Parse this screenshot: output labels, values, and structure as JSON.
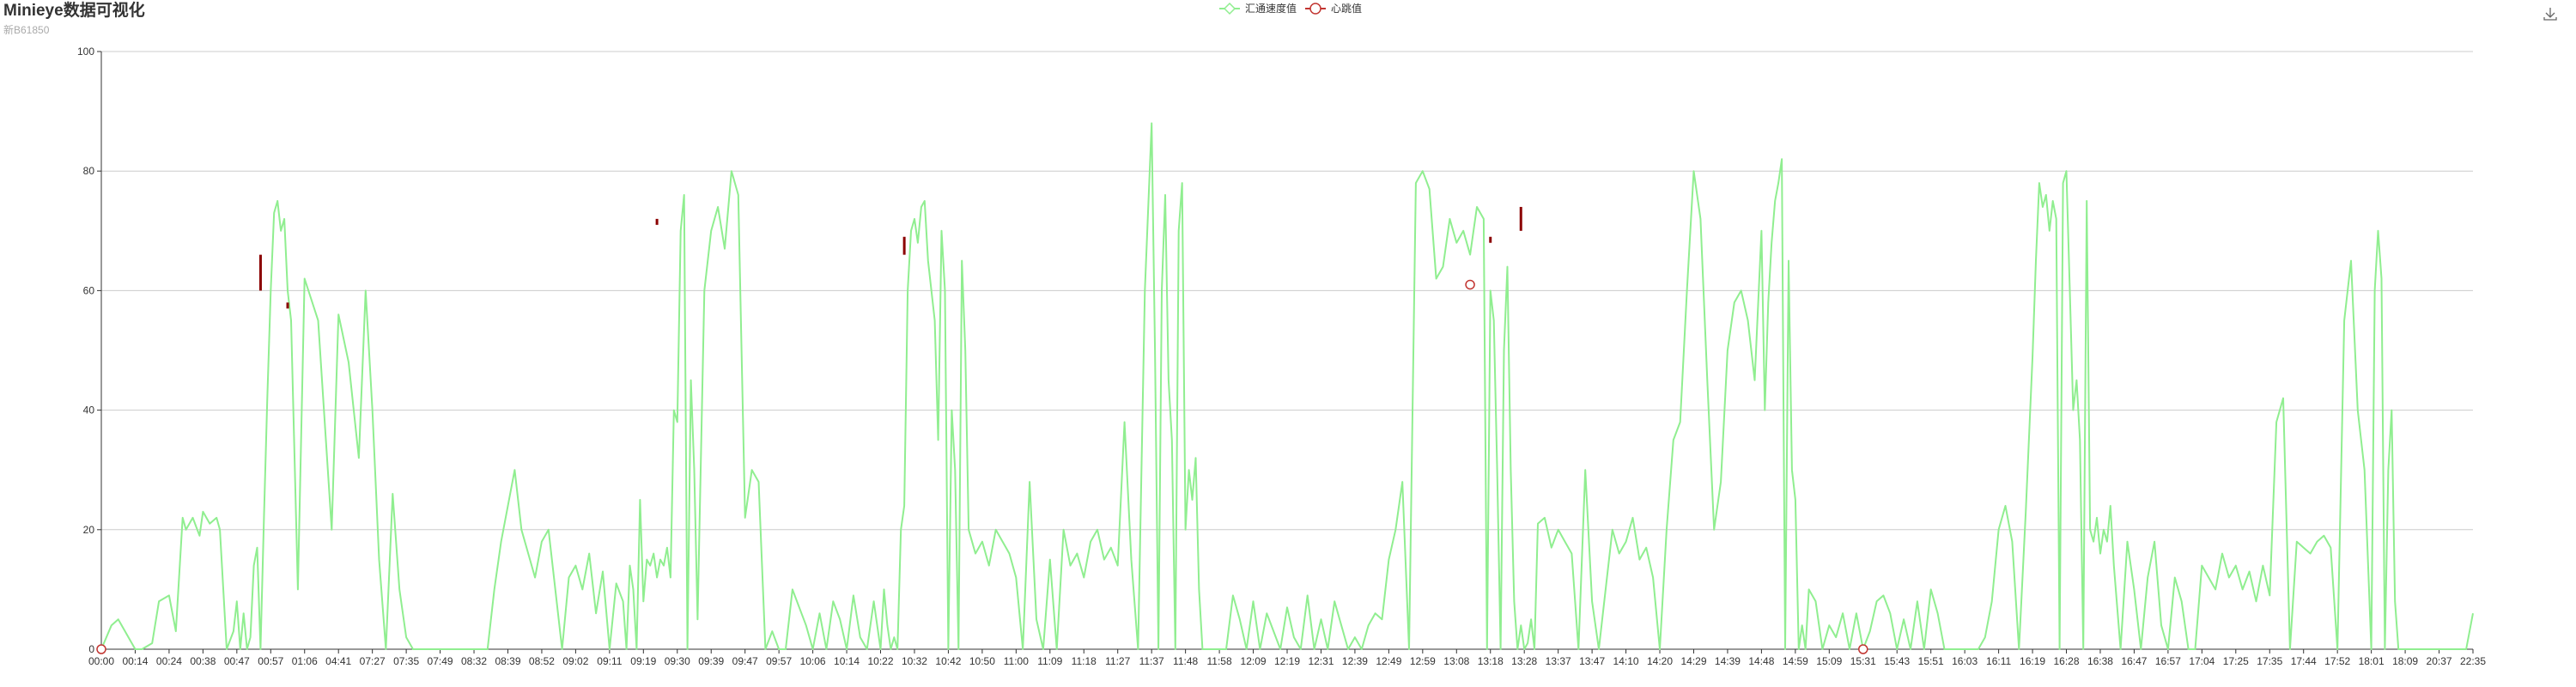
{
  "header": {
    "title": "Minieye数据可视化",
    "subtitle": "新B61850"
  },
  "toolbox": {
    "save_icon": "download-icon"
  },
  "colors": {
    "speed": "#90ee90",
    "heartbeat_border": "#c23531",
    "heartbeat_segment": "#8b0000",
    "axis": "#333333",
    "grid": "#cccccc"
  },
  "chart_data": {
    "type": "line",
    "title": "Minieye数据可视化",
    "subtitle": "新B61850",
    "legend": {
      "position": "top-center",
      "items": [
        "汇通速度值",
        "心跳值"
      ]
    },
    "ylim": [
      0,
      100
    ],
    "y_ticks": [
      0,
      20,
      40,
      60,
      80,
      100
    ],
    "grid": "horizontal",
    "x_labels": [
      "00:00",
      "00:14",
      "00:24",
      "00:38",
      "00:47",
      "00:57",
      "01:06",
      "04:41",
      "07:27",
      "07:35",
      "07:49",
      "08:32",
      "08:39",
      "08:52",
      "09:02",
      "09:11",
      "09:19",
      "09:30",
      "09:39",
      "09:47",
      "09:57",
      "10:06",
      "10:14",
      "10:22",
      "10:32",
      "10:42",
      "10:50",
      "11:00",
      "11:09",
      "11:18",
      "11:27",
      "11:37",
      "11:48",
      "11:58",
      "12:09",
      "12:19",
      "12:31",
      "12:39",
      "12:49",
      "12:59",
      "13:08",
      "13:18",
      "13:28",
      "13:37",
      "13:47",
      "14:10",
      "14:20",
      "14:29",
      "14:39",
      "14:48",
      "14:59",
      "15:09",
      "15:31",
      "15:43",
      "15:51",
      "16:03",
      "16:11",
      "16:19",
      "16:28",
      "16:38",
      "16:47",
      "16:57",
      "17:04",
      "17:25",
      "17:35",
      "17:44",
      "17:52",
      "18:01",
      "18:09",
      "20:37",
      "22:35"
    ],
    "series": [
      {
        "name": "汇通速度值",
        "x_label_index": [
          0,
          0.3,
          0.5,
          0.8,
          1,
          1.2,
          1.5,
          1.7,
          2,
          2.2,
          2.4,
          2.5,
          2.7,
          2.9,
          3,
          3.2,
          3.4,
          3.5,
          3.7,
          3.9,
          4,
          4.1,
          4.2,
          4.3,
          4.4,
          4.5,
          4.6,
          4.7,
          4.8,
          4.9,
          5,
          5.1,
          5.2,
          5.3,
          5.4,
          5.5,
          5.6,
          5.8,
          6,
          6.4,
          6.8,
          7,
          7.3,
          7.6,
          7.8,
          8,
          8.2,
          8.4,
          8.6,
          8.8,
          9,
          9.2,
          9.4,
          9.6,
          9.8,
          10,
          10.2,
          10.4,
          10.6,
          10.8,
          11,
          11.2,
          11.4,
          11.6,
          11.8,
          12,
          12.2,
          12.4,
          12.6,
          12.8,
          13,
          13.2,
          13.4,
          13.6,
          13.8,
          14,
          14.2,
          14.4,
          14.6,
          14.8,
          15,
          15.2,
          15.4,
          15.5,
          15.6,
          15.7,
          15.8,
          15.9,
          16,
          16.1,
          16.2,
          16.3,
          16.4,
          16.5,
          16.6,
          16.7,
          16.8,
          16.9,
          17,
          17.1,
          17.2,
          17.3,
          17.4,
          17.5,
          17.6,
          17.8,
          18,
          18.2,
          18.4,
          18.6,
          18.8,
          19,
          19.2,
          19.4,
          19.6,
          19.8,
          20,
          20.2,
          20.4,
          20.6,
          20.8,
          21,
          21.2,
          21.4,
          21.6,
          21.8,
          22,
          22.2,
          22.4,
          22.6,
          22.8,
          23,
          23.1,
          23.2,
          23.3,
          23.4,
          23.5,
          23.6,
          23.7,
          23.8,
          23.9,
          24,
          24.1,
          24.2,
          24.3,
          24.4,
          24.5,
          24.6,
          24.7,
          24.8,
          24.9,
          25,
          25.1,
          25.2,
          25.3,
          25.4,
          25.5,
          25.6,
          25.8,
          26,
          26.2,
          26.4,
          26.6,
          26.8,
          27,
          27.2,
          27.4,
          27.6,
          27.8,
          28,
          28.2,
          28.4,
          28.6,
          28.8,
          29,
          29.2,
          29.4,
          29.6,
          29.8,
          30,
          30.2,
          30.4,
          30.6,
          30.8,
          31,
          31.1,
          31.2,
          31.3,
          31.4,
          31.5,
          31.6,
          31.7,
          31.8,
          31.9,
          32,
          32.1,
          32.2,
          32.3,
          32.4,
          32.5,
          32.6,
          32.8,
          33,
          33.2,
          33.4,
          33.6,
          33.8,
          34,
          34.2,
          34.4,
          34.6,
          34.8,
          35,
          35.2,
          35.4,
          35.6,
          35.8,
          36,
          36.2,
          36.4,
          36.6,
          36.8,
          37,
          37.2,
          37.4,
          37.6,
          37.8,
          38,
          38.2,
          38.4,
          38.6,
          38.8,
          39,
          39.2,
          39.4,
          39.6,
          39.8,
          40,
          40.2,
          40.4,
          40.6,
          40.8,
          40.9,
          41,
          41.1,
          41.2,
          41.3,
          41.4,
          41.5,
          41.6,
          41.7,
          41.8,
          41.9,
          42,
          42.1,
          42.2,
          42.3,
          42.4,
          42.6,
          42.8,
          43,
          43.2,
          43.4,
          43.6,
          43.8,
          44,
          44.2,
          44.4,
          44.6,
          44.8,
          45,
          45.2,
          45.4,
          45.6,
          45.8,
          46,
          46.2,
          46.4,
          46.6,
          46.8,
          47,
          47.2,
          47.4,
          47.6,
          47.8,
          48,
          48.2,
          48.4,
          48.6,
          48.8,
          49,
          49.1,
          49.2,
          49.3,
          49.4,
          49.5,
          49.6,
          49.7,
          49.8,
          49.9,
          50,
          50.1,
          50.2,
          50.3,
          50.4,
          50.6,
          50.8,
          51,
          51.2,
          51.4,
          51.6,
          51.8,
          52,
          52.2,
          52.4,
          52.6,
          52.8,
          53,
          53.2,
          53.4,
          53.6,
          53.8,
          54,
          54.2,
          54.4,
          54.6,
          54.8,
          55,
          55.2,
          55.4,
          55.6,
          55.8,
          56,
          56.2,
          56.4,
          56.6,
          56.8,
          57,
          57.1,
          57.2,
          57.3,
          57.4,
          57.5,
          57.6,
          57.7,
          57.8,
          57.9,
          58,
          58.1,
          58.2,
          58.3,
          58.4,
          58.5,
          58.6,
          58.7,
          58.8,
          58.9,
          59,
          59.1,
          59.2,
          59.3,
          59.4,
          59.6,
          59.8,
          60,
          60.2,
          60.4,
          60.6,
          60.8,
          61,
          61.2,
          61.4,
          61.6,
          61.8,
          62,
          62.2,
          62.4,
          62.6,
          62.8,
          63,
          63.2,
          63.4,
          63.6,
          63.8,
          64,
          64.2,
          64.4,
          64.6,
          64.8,
          65,
          65.2,
          65.4,
          65.6,
          65.8,
          66,
          66.2,
          66.4,
          66.6,
          66.8,
          67,
          67.1,
          67.2,
          67.3,
          67.4,
          67.5,
          67.6,
          67.7,
          67.8,
          67.9,
          68,
          68.2,
          68.4,
          68.6,
          68.8,
          69,
          69.2,
          69.4,
          69.6,
          69.8,
          70
        ],
        "values": [
          0,
          4,
          5,
          2,
          0,
          0,
          1,
          8,
          9,
          3,
          22,
          20,
          22,
          19,
          23,
          21,
          22,
          20,
          0,
          3,
          8,
          0,
          6,
          0,
          2,
          14,
          17,
          0,
          22,
          42,
          60,
          73,
          75,
          70,
          72,
          60,
          55,
          10,
          62,
          55,
          20,
          56,
          48,
          32,
          60,
          40,
          15,
          0,
          26,
          10,
          2,
          0,
          0,
          0,
          0,
          0,
          0,
          0,
          0,
          0,
          0,
          0,
          0,
          10,
          18,
          24,
          30,
          20,
          16,
          12,
          18,
          20,
          10,
          0,
          12,
          14,
          10,
          16,
          6,
          13,
          0,
          11,
          8,
          0,
          14,
          10,
          0,
          25,
          8,
          15,
          14,
          16,
          12,
          15,
          14,
          17,
          12,
          40,
          38,
          70,
          76,
          0,
          45,
          30,
          5,
          60,
          70,
          74,
          67,
          80,
          76,
          22,
          30,
          28,
          0,
          3,
          0,
          0,
          10,
          7,
          4,
          0,
          6,
          0,
          8,
          5,
          0,
          9,
          2,
          0,
          8,
          0,
          10,
          4,
          0,
          2,
          0,
          20,
          24,
          60,
          70,
          72,
          68,
          74,
          75,
          65,
          60,
          55,
          35,
          70,
          60,
          0,
          40,
          30,
          0,
          65,
          50,
          20,
          16,
          18,
          14,
          20,
          18,
          16,
          12,
          0,
          28,
          5,
          0,
          15,
          0,
          20,
          14,
          16,
          12,
          18,
          20,
          15,
          17,
          14,
          38,
          15,
          0,
          60,
          88,
          50,
          0,
          60,
          76,
          45,
          35,
          0,
          70,
          78,
          20,
          30,
          25,
          32,
          10,
          0,
          0,
          0,
          0,
          0,
          9,
          5,
          0,
          8,
          0,
          6,
          3,
          0,
          7,
          2,
          0,
          9,
          0,
          5,
          0,
          8,
          4,
          0,
          2,
          0,
          4,
          6,
          5,
          15,
          20,
          28,
          0,
          78,
          80,
          77,
          62,
          64,
          72,
          68,
          70,
          66,
          74,
          72,
          0,
          60,
          55,
          30,
          0,
          50,
          64,
          30,
          8,
          0,
          4,
          0,
          1,
          5,
          0,
          21,
          22,
          17,
          20,
          18,
          16,
          0,
          30,
          8,
          0,
          10,
          20,
          16,
          18,
          22,
          15,
          17,
          12,
          0,
          20,
          35,
          38,
          60,
          80,
          72,
          45,
          20,
          28,
          50,
          58,
          60,
          55,
          45,
          70,
          40,
          58,
          68,
          75,
          78,
          82,
          0,
          65,
          30,
          25,
          0,
          4,
          0,
          10,
          8,
          0,
          4,
          2,
          6,
          0,
          6,
          0,
          3,
          8,
          9,
          6,
          0,
          5,
          0,
          8,
          0,
          10,
          6,
          0,
          0,
          0,
          0,
          0,
          0,
          2,
          8,
          20,
          24,
          18,
          0,
          23,
          49,
          65,
          78,
          74,
          76,
          70,
          75,
          72,
          0,
          78,
          80,
          60,
          40,
          45,
          35,
          0,
          75,
          20,
          18,
          22,
          16,
          20,
          18,
          24,
          14,
          0,
          18,
          10,
          0,
          12,
          18,
          4,
          0,
          12,
          8,
          0,
          0,
          14,
          12,
          10,
          16,
          12,
          14,
          10,
          13,
          8,
          14,
          9,
          38,
          42,
          0,
          18,
          17,
          16,
          18,
          19,
          17,
          0,
          55,
          65,
          40,
          30,
          0,
          60,
          70,
          62,
          0,
          30,
          40,
          8,
          0,
          0,
          0,
          0,
          0,
          0,
          0,
          0,
          0,
          0,
          0,
          0,
          6,
          7,
          0,
          0,
          0
        ]
      },
      {
        "name": "心跳值",
        "points": [
          {
            "x_label_index": 0,
            "value": 0
          },
          {
            "x_label_index": 40.4,
            "value": 61
          },
          {
            "x_label_index": 52,
            "value": 0
          }
        ],
        "segments": [
          {
            "x_label_index": 4.7,
            "from": 60,
            "to": 66
          },
          {
            "x_label_index": 5.5,
            "from": 57,
            "to": 58
          },
          {
            "x_label_index": 16.4,
            "from": 71,
            "to": 72
          },
          {
            "x_label_index": 23.7,
            "from": 66,
            "to": 69
          },
          {
            "x_label_index": 41,
            "from": 68,
            "to": 69
          },
          {
            "x_label_index": 41.9,
            "from": 70,
            "to": 74
          }
        ]
      }
    ]
  }
}
